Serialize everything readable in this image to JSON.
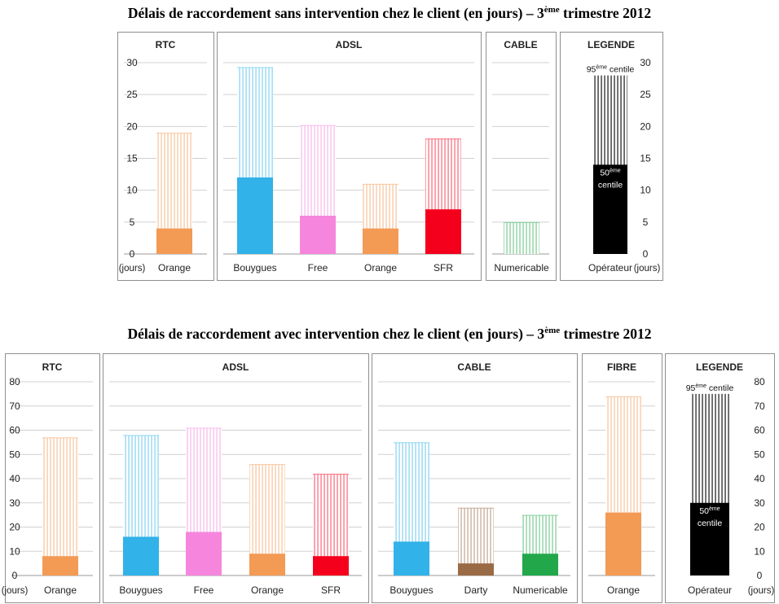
{
  "chart_data": [
    {
      "type": "bar",
      "title": {
        "before": "Délais de raccordement sans intervention chez le client (en jours) – 3",
        "sup": "ème",
        "after": " trimestre 2012"
      },
      "y_unit": "(jours)",
      "ylim": [
        0,
        30
      ],
      "y_ticks": [
        0,
        5,
        10,
        15,
        20,
        25,
        30
      ],
      "groups": [
        {
          "name": "RTC",
          "bars": [
            {
              "label": "Orange",
              "p50": 4,
              "p95": 19,
              "color": "#F39A55"
            }
          ]
        },
        {
          "name": "ADSL",
          "bars": [
            {
              "label": "Bouygues",
              "p50": 12,
              "p95": 29.3,
              "color": "#31B2E8"
            },
            {
              "label": "Free",
              "p50": 6,
              "p95": 20.2,
              "color": "#F686DD"
            },
            {
              "label": "Orange",
              "p50": 4,
              "p95": 11,
              "color": "#F39A55"
            },
            {
              "label": "SFR",
              "p50": 7,
              "p95": 18.1,
              "color": "#F5001C"
            }
          ]
        },
        {
          "name": "CABLE",
          "bars": [
            {
              "label": "Numericable",
              "p50": null,
              "p95": 5,
              "color": "#22A84B"
            }
          ]
        }
      ],
      "legend": {
        "name": "LEGENDE",
        "label": "Opérateur",
        "p50": 14,
        "p95": 28,
        "color": "#000000",
        "p95_text": {
          "before": "95",
          "sup": "ème",
          "after": " centile"
        },
        "p50_text": {
          "before": "50",
          "sup": "ème",
          "after": "centile"
        }
      }
    },
    {
      "type": "bar",
      "title": {
        "before": "Délais de raccordement avec intervention chez le client (en jours) – 3",
        "sup": "ème",
        "after": " trimestre 2012"
      },
      "y_unit": "(jours)",
      "ylim": [
        0,
        80
      ],
      "y_ticks": [
        0,
        10,
        20,
        30,
        40,
        50,
        60,
        70,
        80
      ],
      "groups": [
        {
          "name": "RTC",
          "bars": [
            {
              "label": "Orange",
              "p50": 8,
              "p95": 57,
              "color": "#F39A55"
            }
          ]
        },
        {
          "name": "ADSL",
          "bars": [
            {
              "label": "Bouygues",
              "p50": 16,
              "p95": 58,
              "color": "#31B2E8"
            },
            {
              "label": "Free",
              "p50": 18,
              "p95": 61,
              "color": "#F686DD"
            },
            {
              "label": "Orange",
              "p50": 9,
              "p95": 46,
              "color": "#F39A55"
            },
            {
              "label": "SFR",
              "p50": 8,
              "p95": 42,
              "color": "#F5001C"
            }
          ]
        },
        {
          "name": "CABLE",
          "bars": [
            {
              "label": "Bouygues",
              "p50": 14,
              "p95": 55,
              "color": "#31B2E8"
            },
            {
              "label": "Darty",
              "p50": 5,
              "p95": 28,
              "color": "#9A6A45"
            },
            {
              "label": "Numericable",
              "p50": 9,
              "p95": 25,
              "color": "#22A84B"
            }
          ]
        },
        {
          "name": "FIBRE",
          "bars": [
            {
              "label": "Orange",
              "p50": 26,
              "p95": 74,
              "color": "#F39A55"
            }
          ]
        }
      ],
      "legend": {
        "name": "LEGENDE",
        "label": "Opérateur",
        "p50": 30,
        "p95": 75,
        "color": "#000000",
        "p95_text": {
          "before": "95",
          "sup": "ème",
          "after": " centile"
        },
        "p50_text": {
          "before": "50",
          "sup": "ème",
          "after": "centile"
        }
      }
    }
  ]
}
